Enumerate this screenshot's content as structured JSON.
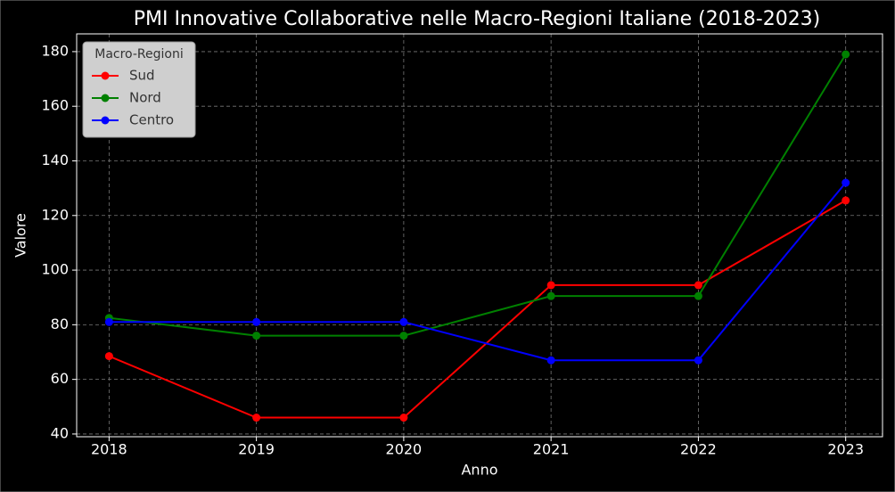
{
  "chart_data": {
    "type": "line",
    "title": "PMI Innovative Collaborative nelle Macro-Regioni Italiane (2018-2023)",
    "x_label": "Anno",
    "y_label": "Valore",
    "x": [
      2018,
      2019,
      2020,
      2021,
      2022,
      2023
    ],
    "series": [
      {
        "name": "Sud",
        "color": "#ff0000",
        "values": [
          68.5,
          46,
          46,
          94.5,
          94.5,
          125.5
        ]
      },
      {
        "name": "Nord",
        "color": "#008000",
        "values": [
          82.5,
          76,
          76,
          90.5,
          90.5,
          179
        ]
      },
      {
        "name": "Centro",
        "color": "#0000ff",
        "values": [
          81,
          81,
          81,
          67,
          67,
          132
        ]
      }
    ],
    "xlim": [
      2017.78,
      2023.25
    ],
    "xticks": [
      2018,
      2019,
      2020,
      2021,
      2022,
      2023
    ],
    "ylim": [
      39,
      186.5
    ],
    "yticks": [
      40,
      60,
      80,
      100,
      120,
      140,
      160,
      180
    ],
    "grid": true,
    "legend_title": "Macro-Regioni",
    "legend_position": "upper-left"
  }
}
